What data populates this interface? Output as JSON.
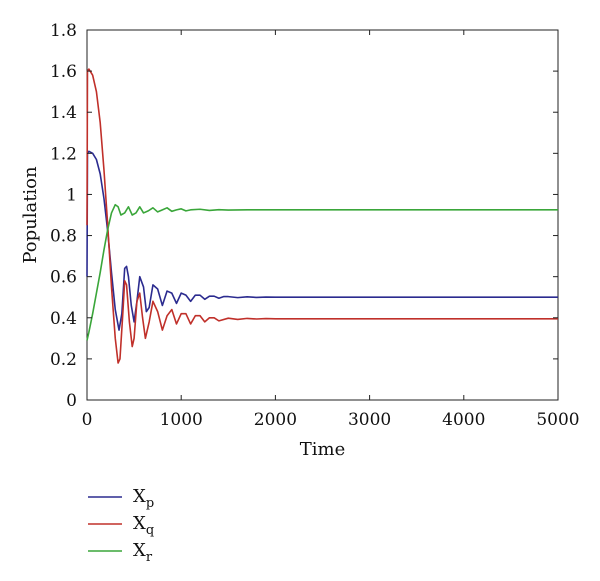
{
  "chart_data": {
    "type": "line",
    "title": "",
    "xlabel": "Time",
    "ylabel": "Population",
    "xlim": [
      0,
      5000
    ],
    "ylim": [
      0,
      1.8
    ],
    "xticks": [
      0,
      1000,
      2000,
      3000,
      4000,
      5000
    ],
    "xtick_labels": [
      "0",
      "1000",
      "2000",
      "3000",
      "4000",
      "5000"
    ],
    "yticks": [
      0,
      0.2,
      0.4,
      0.6,
      0.8,
      1,
      1.2,
      1.4,
      1.6,
      1.8
    ],
    "ytick_labels": [
      "0",
      "0.2",
      "0.4",
      "0.6",
      "0.8",
      "1",
      "1.2",
      "1.4",
      "1.6",
      "1.8"
    ],
    "grid": false,
    "legend_position": "below-left",
    "series": [
      {
        "name_main": "X",
        "name_sub": "p",
        "color": "#2b2b8f",
        "x": [
          0,
          5,
          20,
          60,
          100,
          140,
          180,
          220,
          260,
          300,
          340,
          370,
          400,
          420,
          440,
          470,
          500,
          530,
          560,
          600,
          630,
          660,
          700,
          750,
          800,
          850,
          900,
          950,
          1000,
          1050,
          1100,
          1150,
          1200,
          1250,
          1300,
          1350,
          1400,
          1450,
          1500,
          1600,
          1700,
          1800,
          1900,
          2000,
          2200,
          2500,
          3000,
          4000,
          5000
        ],
        "y": [
          0.6,
          1.2,
          1.21,
          1.2,
          1.17,
          1.1,
          0.98,
          0.82,
          0.62,
          0.44,
          0.34,
          0.42,
          0.64,
          0.65,
          0.6,
          0.46,
          0.38,
          0.48,
          0.6,
          0.55,
          0.43,
          0.45,
          0.56,
          0.54,
          0.46,
          0.53,
          0.52,
          0.47,
          0.52,
          0.51,
          0.48,
          0.51,
          0.51,
          0.49,
          0.505,
          0.505,
          0.495,
          0.503,
          0.503,
          0.498,
          0.502,
          0.499,
          0.501,
          0.5,
          0.5,
          0.5,
          0.5,
          0.5,
          0.5
        ]
      },
      {
        "name_main": "X",
        "name_sub": "q",
        "color": "#c0302a",
        "x": [
          0,
          5,
          20,
          60,
          100,
          140,
          180,
          220,
          260,
          300,
          330,
          350,
          380,
          400,
          420,
          450,
          480,
          500,
          530,
          560,
          590,
          620,
          660,
          700,
          750,
          800,
          850,
          900,
          950,
          1000,
          1050,
          1100,
          1150,
          1200,
          1250,
          1300,
          1350,
          1400,
          1500,
          1600,
          1700,
          1800,
          1900,
          2000,
          2200,
          2500,
          3000,
          4000,
          5000
        ],
        "y": [
          0.85,
          1.6,
          1.61,
          1.58,
          1.5,
          1.35,
          1.12,
          0.85,
          0.55,
          0.3,
          0.18,
          0.2,
          0.42,
          0.58,
          0.56,
          0.38,
          0.26,
          0.3,
          0.48,
          0.52,
          0.4,
          0.3,
          0.38,
          0.48,
          0.43,
          0.34,
          0.41,
          0.44,
          0.37,
          0.42,
          0.42,
          0.37,
          0.41,
          0.41,
          0.38,
          0.4,
          0.4,
          0.385,
          0.398,
          0.392,
          0.397,
          0.394,
          0.396,
          0.395,
          0.395,
          0.395,
          0.395,
          0.395,
          0.395
        ]
      },
      {
        "name_main": "X",
        "name_sub": "r",
        "color": "#3aa63a",
        "x": [
          0,
          20,
          60,
          100,
          140,
          180,
          220,
          260,
          300,
          330,
          360,
          400,
          440,
          480,
          520,
          560,
          600,
          650,
          700,
          750,
          800,
          850,
          900,
          950,
          1000,
          1050,
          1100,
          1200,
          1300,
          1400,
          1500,
          1700,
          2000,
          2500,
          3000,
          4000,
          5000
        ],
        "y": [
          0.29,
          0.33,
          0.42,
          0.52,
          0.62,
          0.73,
          0.83,
          0.91,
          0.95,
          0.94,
          0.9,
          0.91,
          0.94,
          0.9,
          0.91,
          0.94,
          0.91,
          0.92,
          0.935,
          0.915,
          0.925,
          0.935,
          0.918,
          0.925,
          0.93,
          0.92,
          0.925,
          0.928,
          0.922,
          0.926,
          0.924,
          0.925,
          0.925,
          0.925,
          0.925,
          0.925,
          0.925
        ]
      }
    ]
  }
}
